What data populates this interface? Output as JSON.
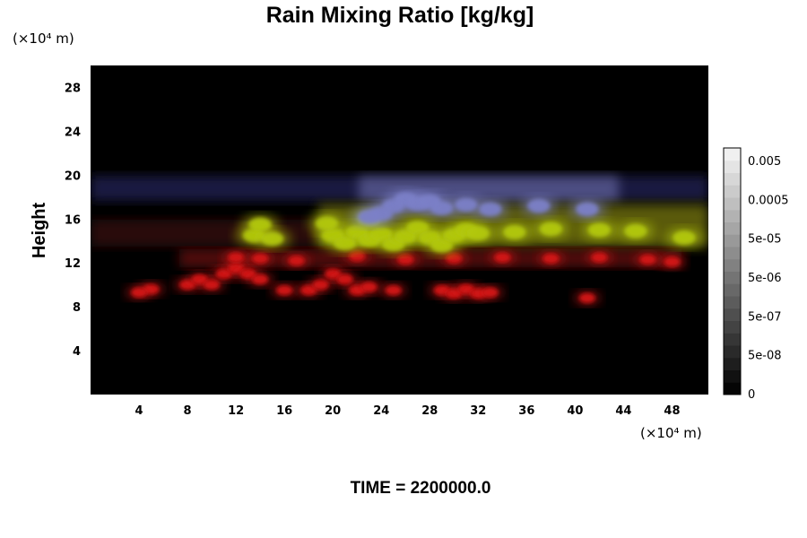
{
  "chart_data": {
    "type": "heatmap",
    "title": "Rain Mixing Ratio [kg/kg]",
    "ylabel": "Height",
    "xlabel": "",
    "y_unit": "(×10⁴ m)",
    "x_unit": "(×10⁴ m)",
    "x_ticks": [
      4,
      8,
      12,
      16,
      20,
      24,
      28,
      32,
      36,
      40,
      44,
      48
    ],
    "y_ticks": [
      4,
      8,
      12,
      16,
      20,
      24,
      28
    ],
    "xlim": [
      0,
      51
    ],
    "ylim": [
      0,
      30
    ],
    "grid": false,
    "colorbar": {
      "placement": "right",
      "tick_labels": [
        "0.005",
        "0.0005",
        "5e-05",
        "5e-06",
        "5e-07",
        "5e-08",
        "0"
      ],
      "levels": 20,
      "colors": [
        "#000000",
        "#ffffff"
      ]
    },
    "features": [
      {
        "label": "red",
        "color": "#d41515",
        "cells": [
          [
            8,
            10
          ],
          [
            9,
            10.5
          ],
          [
            10,
            10
          ],
          [
            11,
            11
          ],
          [
            12,
            11.5
          ],
          [
            13,
            11
          ],
          [
            14,
            10.5
          ],
          [
            16,
            9.5
          ],
          [
            18,
            9.5
          ],
          [
            19,
            10
          ],
          [
            20,
            11
          ],
          [
            21,
            10.5
          ],
          [
            22,
            9.5
          ],
          [
            23,
            9.8
          ],
          [
            25,
            9.5
          ],
          [
            29,
            9.5
          ],
          [
            30,
            9.2
          ],
          [
            31,
            9.6
          ],
          [
            32,
            9.2
          ],
          [
            33,
            9.3
          ],
          [
            5,
            9.6
          ],
          [
            4,
            9.3
          ],
          [
            41,
            8.8
          ],
          [
            48,
            12.1
          ],
          [
            12,
            12.5
          ],
          [
            14,
            12.4
          ],
          [
            17,
            12.2
          ],
          [
            22,
            12.6
          ],
          [
            26,
            12.3
          ],
          [
            30,
            12.4
          ],
          [
            34,
            12.5
          ],
          [
            38,
            12.4
          ],
          [
            42,
            12.5
          ],
          [
            46,
            12.3
          ]
        ]
      },
      {
        "label": "yellow-green",
        "color": "#b2c810",
        "cells": [
          [
            13.5,
            14.5
          ],
          [
            14,
            15.5
          ],
          [
            15,
            14.2
          ],
          [
            20,
            14.5
          ],
          [
            21,
            13.8
          ],
          [
            22,
            14.8
          ],
          [
            23,
            14.1
          ],
          [
            24,
            14.6
          ],
          [
            25,
            13.7
          ],
          [
            26,
            14.4
          ],
          [
            27,
            15.2
          ],
          [
            28,
            14.3
          ],
          [
            29,
            13.6
          ],
          [
            30,
            14.5
          ],
          [
            31,
            15.0
          ],
          [
            32,
            14.7
          ],
          [
            35,
            14.8
          ],
          [
            38,
            15.1
          ],
          [
            42,
            15.0
          ],
          [
            45,
            14.9
          ],
          [
            49,
            14.3
          ],
          [
            19.5,
            15.6
          ],
          [
            23,
            15.9
          ]
        ]
      },
      {
        "label": "blue-white",
        "color": "#7c80c8",
        "cells": [
          [
            25,
            17.2
          ],
          [
            26,
            17.8
          ],
          [
            27,
            17.4
          ],
          [
            28,
            17.6
          ],
          [
            29,
            17.0
          ],
          [
            24,
            16.5
          ],
          [
            31,
            17.3
          ],
          [
            33,
            16.9
          ],
          [
            37,
            17.2
          ],
          [
            41,
            16.9
          ],
          [
            23,
            16.2
          ]
        ]
      }
    ]
  },
  "footer": {
    "time_label": "TIME = 2200000.0"
  }
}
